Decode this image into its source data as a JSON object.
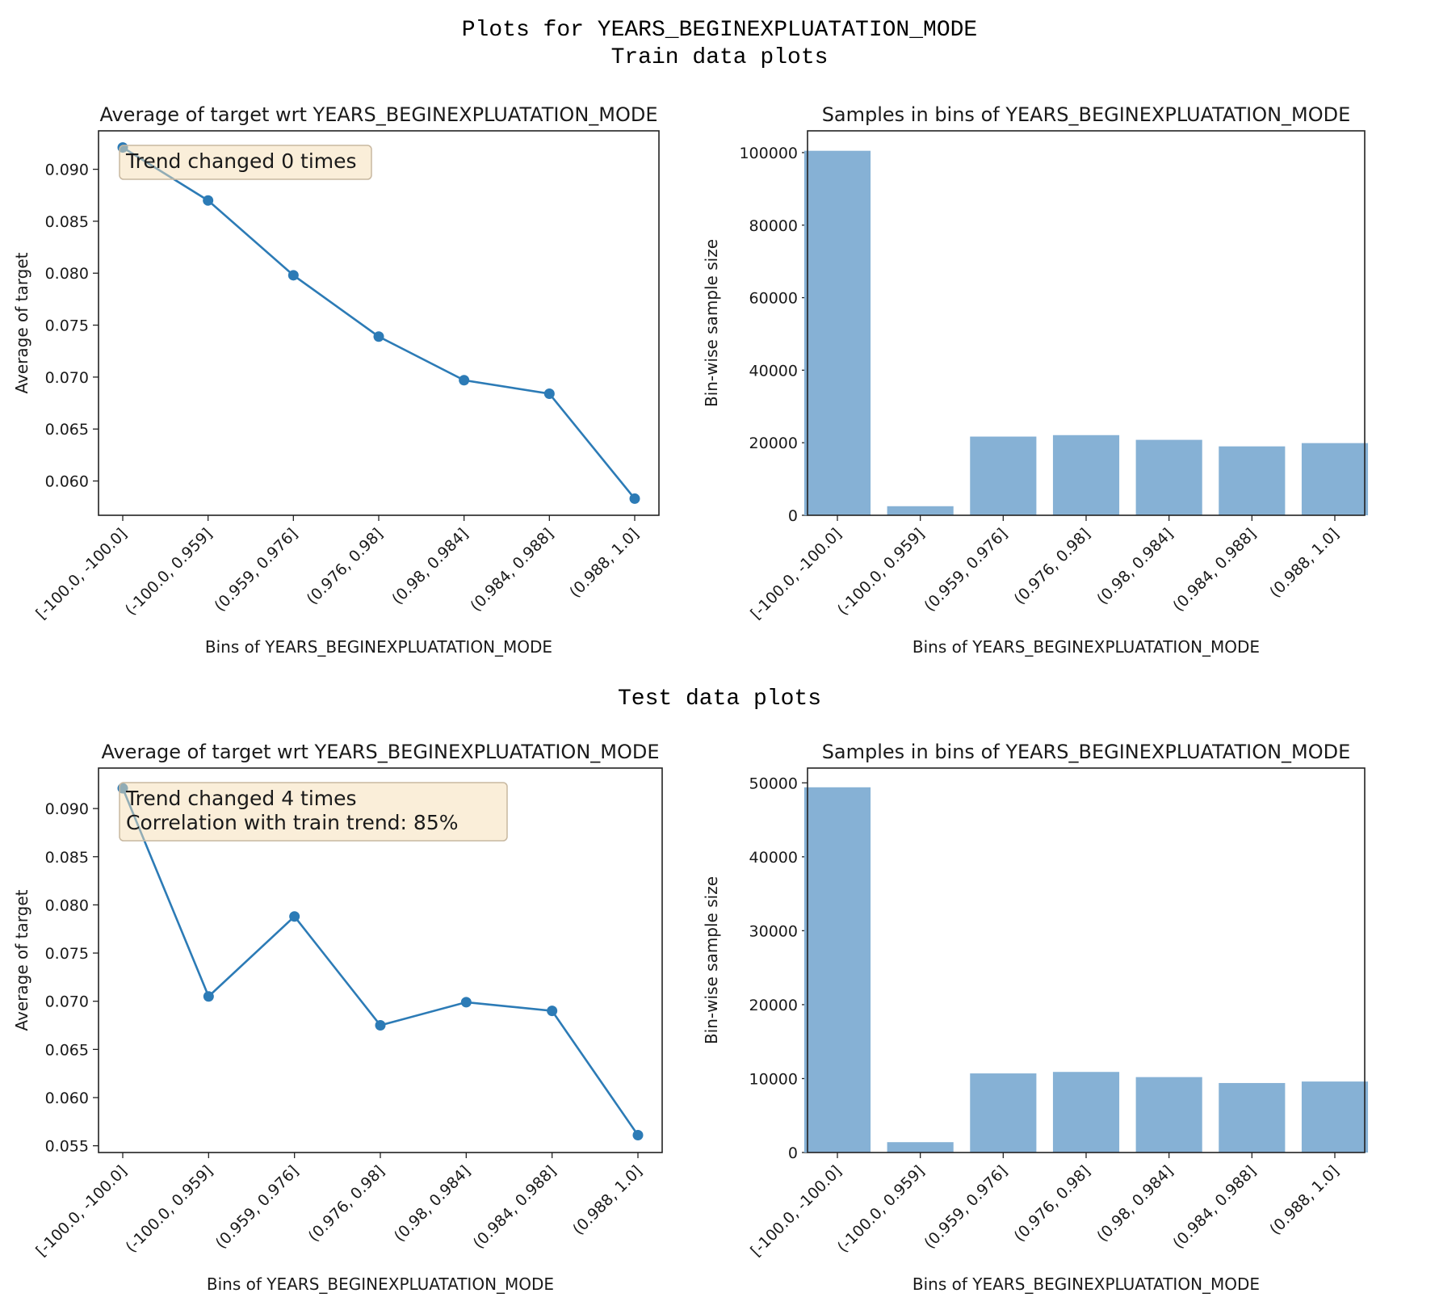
{
  "figure": {
    "title": "Plots for YEARS_BEGINEXPLUATATION_MODE",
    "train_heading": "Train data plots",
    "test_heading": "Test data plots"
  },
  "chart_data": [
    {
      "id": "train-line",
      "type": "line",
      "title": "Average of target wrt YEARS_BEGINEXPLUATATION_MODE",
      "xlabel": "Bins of YEARS_BEGINEXPLUATATION_MODE",
      "ylabel": "Average of target",
      "categories": [
        "[-100.0, -100.0]",
        "(-100.0, 0.959]",
        "(0.959, 0.976]",
        "(0.976, 0.98]",
        "(0.98, 0.984]",
        "(0.984, 0.988]",
        "(0.988, 1.0]"
      ],
      "values": [
        0.0921,
        0.087,
        0.0798,
        0.0739,
        0.0697,
        0.0684,
        0.0583
      ],
      "ylim": [
        0.0567,
        0.0937
      ],
      "yticks": [
        0.06,
        0.065,
        0.07,
        0.075,
        0.08,
        0.085,
        0.09
      ],
      "ytick_labels": [
        "0.060",
        "0.065",
        "0.070",
        "0.075",
        "0.080",
        "0.085",
        "0.090"
      ],
      "annotation": [
        "Trend changed 0 times"
      ],
      "color": "#2c7bb6"
    },
    {
      "id": "train-bar",
      "type": "bar",
      "title": "Samples in bins of YEARS_BEGINEXPLUATATION_MODE",
      "xlabel": "Bins of YEARS_BEGINEXPLUATATION_MODE",
      "ylabel": "Bin-wise sample size",
      "categories": [
        "[-100.0, -100.0]",
        "(-100.0, 0.959]",
        "(0.959, 0.976]",
        "(0.976, 0.98]",
        "(0.98, 0.984]",
        "(0.984, 0.988]",
        "(0.988, 1.0]"
      ],
      "values": [
        100500,
        2500,
        21700,
        22100,
        20800,
        19000,
        19900
      ],
      "ylim": [
        0,
        106000
      ],
      "yticks": [
        0,
        20000,
        40000,
        60000,
        80000,
        100000
      ],
      "ytick_labels": [
        "0",
        "20000",
        "40000",
        "60000",
        "80000",
        "100000"
      ],
      "color": "#86b1d5"
    },
    {
      "id": "test-line",
      "type": "line",
      "title": "Average of target wrt YEARS_BEGINEXPLUATATION_MODE",
      "xlabel": "Bins of YEARS_BEGINEXPLUATATION_MODE",
      "ylabel": "Average of target",
      "categories": [
        "[-100.0, -100.0]",
        "(-100.0, 0.959]",
        "(0.959, 0.976]",
        "(0.976, 0.98]",
        "(0.98, 0.984]",
        "(0.984, 0.988]",
        "(0.988, 1.0]"
      ],
      "values": [
        0.0921,
        0.0705,
        0.0788,
        0.0675,
        0.0699,
        0.069,
        0.0561
      ],
      "ylim": [
        0.0543,
        0.0942
      ],
      "yticks": [
        0.055,
        0.06,
        0.065,
        0.07,
        0.075,
        0.08,
        0.085,
        0.09
      ],
      "ytick_labels": [
        "0.055",
        "0.060",
        "0.065",
        "0.070",
        "0.075",
        "0.080",
        "0.085",
        "0.090"
      ],
      "annotation": [
        "Trend changed 4 times",
        "Correlation with train trend: 85%"
      ],
      "color": "#2c7bb6"
    },
    {
      "id": "test-bar",
      "type": "bar",
      "title": "Samples in bins of YEARS_BEGINEXPLUATATION_MODE",
      "xlabel": "Bins of YEARS_BEGINEXPLUATATION_MODE",
      "ylabel": "Bin-wise sample size",
      "categories": [
        "[-100.0, -100.0]",
        "(-100.0, 0.959]",
        "(0.959, 0.976]",
        "(0.976, 0.98]",
        "(0.98, 0.984]",
        "(0.984, 0.988]",
        "(0.988, 1.0]"
      ],
      "values": [
        49400,
        1400,
        10700,
        10900,
        10200,
        9400,
        9600
      ],
      "ylim": [
        0,
        52000
      ],
      "yticks": [
        0,
        10000,
        20000,
        30000,
        40000,
        50000
      ],
      "ytick_labels": [
        "0",
        "10000",
        "20000",
        "30000",
        "40000",
        "50000"
      ],
      "color": "#86b1d5"
    }
  ]
}
